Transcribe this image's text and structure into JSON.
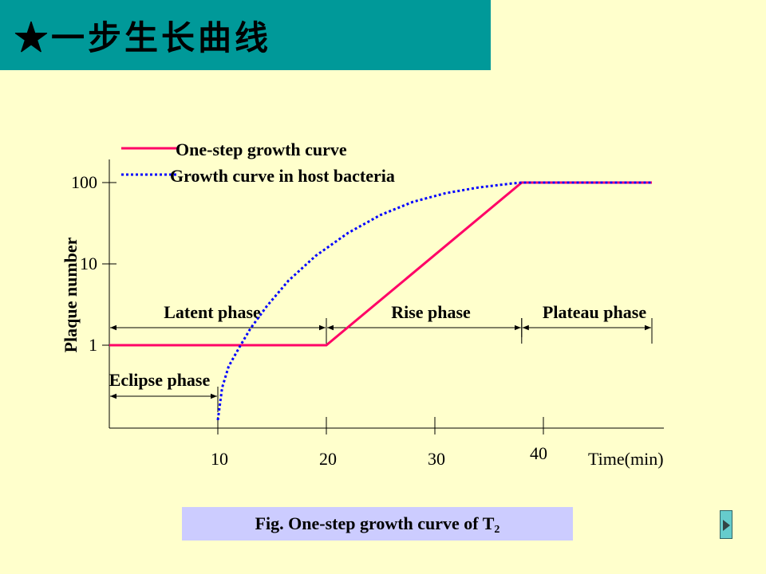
{
  "slide": {
    "title": "★一步生长曲线",
    "caption_prefix": "Fig.    One-step growth curve of T",
    "caption_sub": "2"
  },
  "colors": {
    "title_bar": "#009999",
    "background": "#ffffcc",
    "caption_box": "#ccccff",
    "one_step_line": "#ff0066",
    "host_curve": "#0000ff"
  },
  "nav": {
    "icon": "next-arrow-icon"
  },
  "chart_data": {
    "type": "line",
    "xlabel": "Time(min)",
    "ylabel": "Plaque number",
    "y_scale": "log",
    "x_ticks": [
      {
        "value": 10,
        "label": "10"
      },
      {
        "value": 20,
        "label": "20"
      },
      {
        "value": 30,
        "label": "30"
      },
      {
        "value": 40,
        "label": "40"
      }
    ],
    "y_ticks": [
      {
        "value": 1,
        "label": "1"
      },
      {
        "value": 10,
        "label": "10"
      },
      {
        "value": 100,
        "label": "100"
      }
    ],
    "xlim": [
      0,
      50
    ],
    "grid": false,
    "legend_position": "top",
    "series": [
      {
        "name": "One-step growth curve",
        "style": "solid",
        "color": "#ff0066",
        "points": [
          [
            0,
            1
          ],
          [
            20,
            1
          ],
          [
            38,
            100
          ],
          [
            50,
            100
          ]
        ]
      },
      {
        "name": "Growth curve in host bacteria",
        "style": "dotted",
        "color": "#0000ff",
        "points": [
          [
            10,
            0.12
          ],
          [
            10.4,
            0.3
          ],
          [
            11,
            0.55
          ],
          [
            12,
            0.95
          ],
          [
            13,
            1.6
          ],
          [
            14.5,
            3
          ],
          [
            16.5,
            6.2
          ],
          [
            19,
            12.5
          ],
          [
            22,
            24
          ],
          [
            25,
            40
          ],
          [
            28,
            58
          ],
          [
            31,
            74
          ],
          [
            34,
            87
          ],
          [
            37,
            97
          ],
          [
            38,
            100
          ],
          [
            50,
            100
          ]
        ]
      }
    ],
    "annotations": [
      {
        "text": "Eclipse phase",
        "from": 0,
        "to": 10
      },
      {
        "text": "Latent phase",
        "from": 0,
        "to": 20
      },
      {
        "text": "Rise phase",
        "from": 20,
        "to": 38
      },
      {
        "text": "Plateau phase",
        "from": 38,
        "to": 50
      }
    ]
  }
}
